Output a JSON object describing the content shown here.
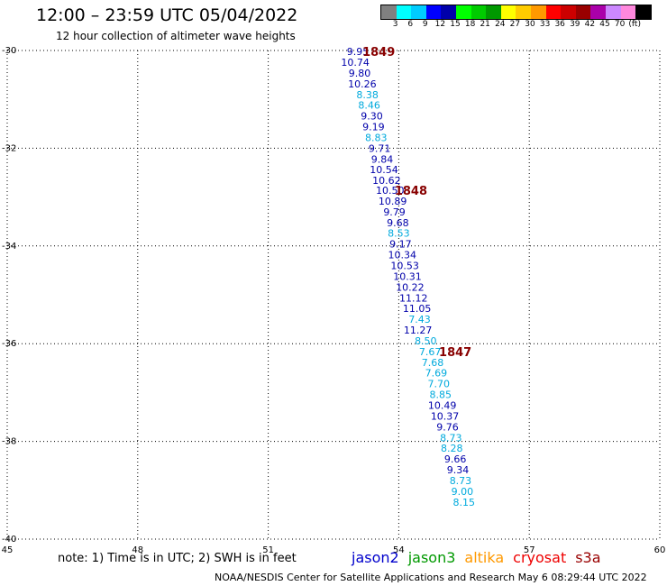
{
  "title": "12:00 – 23:59 UTC 05/04/2022",
  "subtitle": "12 hour collection of altimeter wave heights",
  "note": "note:  1) Time is in UTC;  2) SWH is in feet",
  "credit": "NOAA/NESDIS Center for Satellite Applications and Research     May  6 08:29:44 UTC 2022",
  "satellites": [
    {
      "name": "jason2",
      "color": "#0000cc"
    },
    {
      "name": "jason3",
      "color": "#009900"
    },
    {
      "name": "altika",
      "color": "#ff9900"
    },
    {
      "name": "cryosat",
      "color": "#ee0000"
    },
    {
      "name": "s3a",
      "color": "#990000"
    }
  ],
  "colorbar": {
    "colors": [
      "#808080",
      "#00ffff",
      "#00ccff",
      "#0000ff",
      "#0000aa",
      "#00ff00",
      "#00cc00",
      "#009900",
      "#ffff00",
      "#ffcc00",
      "#ff9900",
      "#ff0000",
      "#cc0000",
      "#990000",
      "#aa00aa",
      "#cc88ff",
      "#ff88dd",
      "#000000"
    ],
    "labels": [
      "3",
      "6",
      "9",
      "12",
      "15",
      "18",
      "21",
      "24",
      "27",
      "30",
      "33",
      "36",
      "39",
      "42",
      "45",
      "70",
      "(ft)"
    ]
  },
  "map": {
    "lon_ticks": [
      45,
      48,
      51,
      54,
      57,
      60
    ],
    "lat_ticks": [
      -30,
      -32,
      -34,
      -36,
      -38,
      -40
    ]
  },
  "observations": [
    {
      "lon": 53.06,
      "lat": -30.02,
      "swh": "9.95",
      "color": "#0000aa"
    },
    {
      "lon": 53.0,
      "lat": -30.24,
      "swh": "10.74",
      "color": "#0000aa"
    },
    {
      "lon": 53.1,
      "lat": -30.46,
      "swh": "9.80",
      "color": "#0000aa"
    },
    {
      "lon": 53.16,
      "lat": -30.68,
      "swh": "10.26",
      "color": "#0000aa"
    },
    {
      "lon": 53.28,
      "lat": -30.9,
      "swh": "8.38",
      "color": "#00aadd"
    },
    {
      "lon": 53.32,
      "lat": -31.12,
      "swh": "8.46",
      "color": "#00aadd"
    },
    {
      "lon": 53.38,
      "lat": -31.34,
      "swh": "9.30",
      "color": "#0000aa"
    },
    {
      "lon": 53.42,
      "lat": -31.56,
      "swh": "9.19",
      "color": "#0000aa"
    },
    {
      "lon": 53.48,
      "lat": -31.78,
      "swh": "8.83",
      "color": "#00aadd"
    },
    {
      "lon": 53.56,
      "lat": -32.0,
      "swh": "9.71",
      "color": "#0000aa"
    },
    {
      "lon": 53.62,
      "lat": -32.22,
      "swh": "9.84",
      "color": "#0000aa"
    },
    {
      "lon": 53.66,
      "lat": -32.44,
      "swh": "10.54",
      "color": "#0000aa"
    },
    {
      "lon": 53.72,
      "lat": -32.66,
      "swh": "10.62",
      "color": "#0000aa"
    },
    {
      "lon": 53.8,
      "lat": -32.86,
      "swh": "10.50",
      "color": "#0000aa"
    },
    {
      "lon": 53.86,
      "lat": -33.08,
      "swh": "10.89",
      "color": "#0000aa"
    },
    {
      "lon": 53.9,
      "lat": -33.3,
      "swh": "9.79",
      "color": "#0000aa"
    },
    {
      "lon": 53.98,
      "lat": -33.52,
      "swh": "9.68",
      "color": "#0000aa"
    },
    {
      "lon": 54.0,
      "lat": -33.74,
      "swh": "8.53",
      "color": "#00aadd"
    },
    {
      "lon": 54.04,
      "lat": -33.96,
      "swh": "9.17",
      "color": "#0000aa"
    },
    {
      "lon": 54.08,
      "lat": -34.18,
      "swh": "10.34",
      "color": "#0000aa"
    },
    {
      "lon": 54.14,
      "lat": -34.4,
      "swh": "10.53",
      "color": "#0000aa"
    },
    {
      "lon": 54.2,
      "lat": -34.62,
      "swh": "10.31",
      "color": "#0000aa"
    },
    {
      "lon": 54.26,
      "lat": -34.84,
      "swh": "10.22",
      "color": "#0000aa"
    },
    {
      "lon": 54.34,
      "lat": -35.06,
      "swh": "11.12",
      "color": "#0000aa"
    },
    {
      "lon": 54.42,
      "lat": -35.28,
      "swh": "11.05",
      "color": "#0000aa"
    },
    {
      "lon": 54.48,
      "lat": -35.5,
      "swh": "7.43",
      "color": "#00aadd"
    },
    {
      "lon": 54.44,
      "lat": -35.72,
      "swh": "11.27",
      "color": "#0000aa"
    },
    {
      "lon": 54.62,
      "lat": -35.94,
      "swh": "8.50",
      "color": "#00aadd"
    },
    {
      "lon": 54.72,
      "lat": -36.16,
      "swh": "7.67",
      "color": "#00aadd"
    },
    {
      "lon": 54.78,
      "lat": -36.38,
      "swh": "7.68",
      "color": "#00aadd"
    },
    {
      "lon": 54.86,
      "lat": -36.6,
      "swh": "7.69",
      "color": "#00aadd"
    },
    {
      "lon": 54.92,
      "lat": -36.82,
      "swh": "7.70",
      "color": "#00aadd"
    },
    {
      "lon": 54.96,
      "lat": -37.04,
      "swh": "8.85",
      "color": "#00aadd"
    },
    {
      "lon": 55.0,
      "lat": -37.26,
      "swh": "10.49",
      "color": "#0000aa"
    },
    {
      "lon": 55.06,
      "lat": -37.48,
      "swh": "10.37",
      "color": "#0000aa"
    },
    {
      "lon": 55.12,
      "lat": -37.7,
      "swh": "9.76",
      "color": "#0000aa"
    },
    {
      "lon": 55.2,
      "lat": -37.92,
      "swh": "8.73",
      "color": "#00aadd"
    },
    {
      "lon": 55.22,
      "lat": -38.14,
      "swh": "8.28",
      "color": "#00aadd"
    },
    {
      "lon": 55.3,
      "lat": -38.36,
      "swh": "9.66",
      "color": "#0000aa"
    },
    {
      "lon": 55.36,
      "lat": -38.58,
      "swh": "9.34",
      "color": "#0000aa"
    },
    {
      "lon": 55.42,
      "lat": -38.8,
      "swh": "8.73",
      "color": "#00aadd"
    },
    {
      "lon": 55.46,
      "lat": -39.02,
      "swh": "9.00",
      "color": "#00aadd"
    },
    {
      "lon": 55.5,
      "lat": -39.24,
      "swh": "8.15",
      "color": "#00aadd"
    }
  ],
  "time_labels": [
    {
      "lon": 53.54,
      "lat": -30.02,
      "text": "1849"
    },
    {
      "lon": 54.28,
      "lat": -32.86,
      "text": "1848"
    },
    {
      "lon": 55.3,
      "lat": -36.16,
      "text": "1847"
    }
  ]
}
